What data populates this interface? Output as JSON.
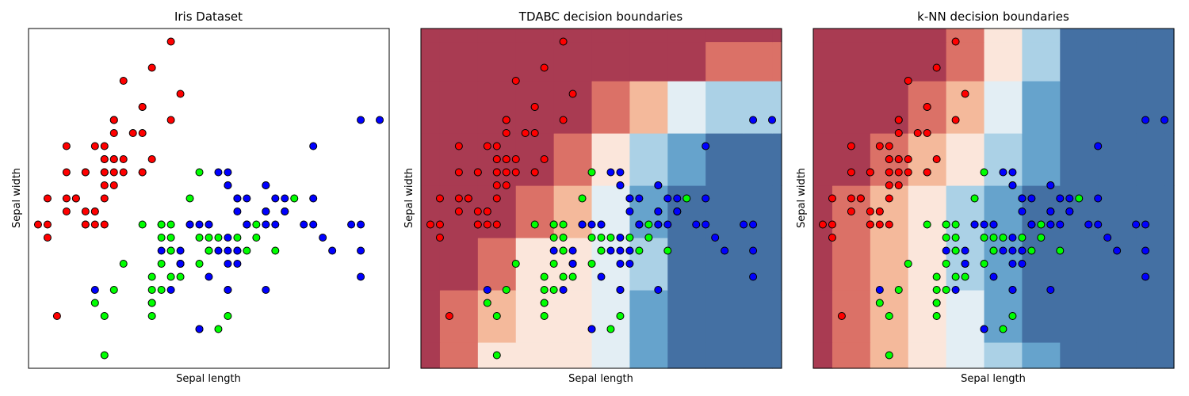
{
  "figure": {
    "background": "#ffffff"
  },
  "colors": {
    "class_0": "#ff0000",
    "class_1": "#00ff00",
    "class_2": "#0000ff",
    "marker_edge": "#000000",
    "region_palette": [
      "#a93b52",
      "#db7167",
      "#f4b99b",
      "#fbe6db",
      "#e3eef4",
      "#abd1e6",
      "#66a3cc",
      "#4470a3"
    ]
  },
  "chart_data": [
    {
      "type": "scatter",
      "title": "Iris Dataset",
      "xlabel": "Sepal length",
      "ylabel": "Sepal width",
      "xlim": [
        4.2,
        8.0
      ],
      "ylim": [
        1.9,
        4.5
      ],
      "ticks": false,
      "grid": false,
      "series": [
        {
          "class": 0,
          "color": "#ff0000",
          "points": [
            [
              5.1,
              3.5
            ],
            [
              4.9,
              3.0
            ],
            [
              4.7,
              3.2
            ],
            [
              4.6,
              3.1
            ],
            [
              5.0,
              3.6
            ],
            [
              5.4,
              3.9
            ],
            [
              4.6,
              3.4
            ],
            [
              5.0,
              3.4
            ],
            [
              4.4,
              2.9
            ],
            [
              4.9,
              3.1
            ],
            [
              5.4,
              3.7
            ],
            [
              4.8,
              3.4
            ],
            [
              4.8,
              3.0
            ],
            [
              4.3,
              3.0
            ],
            [
              5.8,
              4.0
            ],
            [
              5.7,
              4.4
            ],
            [
              5.4,
              3.9
            ],
            [
              5.1,
              3.5
            ],
            [
              5.7,
              3.8
            ],
            [
              5.1,
              3.8
            ],
            [
              5.4,
              3.4
            ],
            [
              5.1,
              3.7
            ],
            [
              4.6,
              3.6
            ],
            [
              5.1,
              3.3
            ],
            [
              4.8,
              3.4
            ],
            [
              5.0,
              3.0
            ],
            [
              5.0,
              3.4
            ],
            [
              5.2,
              3.5
            ],
            [
              5.2,
              3.4
            ],
            [
              4.7,
              3.2
            ],
            [
              4.8,
              3.1
            ],
            [
              5.4,
              3.4
            ],
            [
              5.2,
              4.1
            ],
            [
              5.5,
              4.2
            ],
            [
              4.9,
              3.1
            ],
            [
              5.0,
              3.2
            ],
            [
              5.5,
              3.5
            ],
            [
              4.9,
              3.6
            ],
            [
              4.4,
              3.0
            ],
            [
              5.1,
              3.4
            ],
            [
              5.0,
              3.5
            ],
            [
              4.5,
              2.3
            ],
            [
              4.4,
              3.2
            ],
            [
              5.0,
              3.5
            ],
            [
              5.1,
              3.8
            ],
            [
              4.8,
              3.0
            ],
            [
              5.1,
              3.8
            ],
            [
              4.6,
              3.2
            ],
            [
              5.3,
              3.7
            ],
            [
              5.0,
              3.3
            ]
          ]
        },
        {
          "class": 1,
          "color": "#00ff00",
          "points": [
            [
              7.0,
              3.2
            ],
            [
              6.4,
              3.2
            ],
            [
              6.9,
              3.1
            ],
            [
              5.5,
              2.3
            ],
            [
              6.5,
              2.8
            ],
            [
              5.7,
              2.8
            ],
            [
              6.3,
              3.3
            ],
            [
              4.9,
              2.4
            ],
            [
              6.6,
              2.9
            ],
            [
              5.2,
              2.7
            ],
            [
              5.0,
              2.0
            ],
            [
              5.9,
              3.0
            ],
            [
              6.0,
              2.2
            ],
            [
              6.1,
              2.9
            ],
            [
              5.6,
              2.9
            ],
            [
              6.7,
              3.1
            ],
            [
              5.6,
              3.0
            ],
            [
              5.8,
              2.7
            ],
            [
              6.2,
              2.2
            ],
            [
              5.6,
              2.5
            ],
            [
              5.9,
              3.2
            ],
            [
              6.1,
              2.8
            ],
            [
              6.3,
              2.5
            ],
            [
              6.1,
              2.8
            ],
            [
              6.4,
              2.9
            ],
            [
              6.6,
              3.0
            ],
            [
              6.8,
              2.8
            ],
            [
              6.7,
              3.0
            ],
            [
              6.0,
              2.9
            ],
            [
              5.7,
              2.6
            ],
            [
              5.5,
              2.4
            ],
            [
              5.5,
              2.4
            ],
            [
              5.8,
              2.7
            ],
            [
              6.0,
              2.7
            ],
            [
              5.4,
              3.0
            ],
            [
              6.0,
              3.4
            ],
            [
              6.7,
              3.1
            ],
            [
              6.3,
              2.3
            ],
            [
              5.6,
              3.0
            ],
            [
              5.5,
              2.5
            ],
            [
              5.5,
              2.6
            ],
            [
              6.1,
              3.0
            ],
            [
              5.8,
              2.6
            ],
            [
              5.0,
              2.3
            ],
            [
              5.6,
              2.7
            ],
            [
              5.7,
              3.0
            ],
            [
              5.7,
              2.9
            ],
            [
              6.2,
              2.9
            ],
            [
              5.1,
              2.5
            ],
            [
              5.7,
              2.8
            ]
          ]
        },
        {
          "class": 2,
          "color": "#0000ff",
          "points": [
            [
              6.3,
              3.3
            ],
            [
              5.8,
              2.7
            ],
            [
              7.1,
              3.0
            ],
            [
              6.3,
              2.9
            ],
            [
              6.5,
              3.0
            ],
            [
              7.6,
              3.0
            ],
            [
              4.9,
              2.5
            ],
            [
              7.3,
              2.9
            ],
            [
              6.7,
              2.5
            ],
            [
              7.2,
              3.6
            ],
            [
              6.5,
              3.2
            ],
            [
              6.4,
              2.7
            ],
            [
              6.8,
              3.0
            ],
            [
              5.7,
              2.5
            ],
            [
              5.8,
              2.8
            ],
            [
              6.4,
              3.2
            ],
            [
              6.5,
              3.0
            ],
            [
              7.7,
              3.8
            ],
            [
              7.7,
              2.6
            ],
            [
              6.0,
              2.2
            ],
            [
              6.9,
              3.2
            ],
            [
              5.6,
              2.8
            ],
            [
              7.7,
              2.8
            ],
            [
              6.3,
              2.7
            ],
            [
              6.7,
              3.3
            ],
            [
              7.2,
              3.2
            ],
            [
              6.2,
              2.8
            ],
            [
              6.1,
              3.0
            ],
            [
              6.4,
              2.8
            ],
            [
              7.2,
              3.0
            ],
            [
              7.4,
              2.8
            ],
            [
              7.9,
              3.8
            ],
            [
              6.4,
              2.8
            ],
            [
              6.3,
              2.8
            ],
            [
              6.1,
              2.6
            ],
            [
              7.7,
              3.0
            ],
            [
              6.3,
              3.4
            ],
            [
              6.4,
              3.1
            ],
            [
              6.0,
              3.0
            ],
            [
              6.9,
              3.1
            ],
            [
              6.7,
              3.1
            ],
            [
              6.9,
              3.1
            ],
            [
              5.8,
              2.7
            ],
            [
              6.8,
              3.2
            ],
            [
              6.7,
              3.3
            ],
            [
              6.7,
              3.0
            ],
            [
              6.3,
              2.5
            ],
            [
              6.5,
              3.0
            ],
            [
              6.2,
              3.4
            ],
            [
              5.9,
              3.0
            ]
          ]
        }
      ]
    },
    {
      "type": "heatmap",
      "title": "TDABC decision boundaries",
      "xlabel": "Sepal length",
      "ylabel": "Sepal width",
      "xlim": [
        4.2,
        8.0
      ],
      "ylim": [
        1.9,
        4.5
      ],
      "ticks": false,
      "overlay": "scatter of the Iris points (same as panel 1)",
      "levels": 8,
      "grid_x": [
        4.2,
        4.6,
        5.0,
        5.4,
        5.8,
        6.2,
        6.6,
        7.0,
        7.4,
        7.8,
        8.0
      ],
      "grid_y": [
        1.9,
        2.3,
        2.7,
        3.1,
        3.5,
        3.9,
        4.3,
        4.5
      ],
      "levels_grid": [
        [
          0,
          1,
          3,
          3,
          3,
          4,
          6,
          7,
          7,
          7,
          7
        ],
        [
          0,
          1,
          2,
          3,
          3,
          4,
          6,
          7,
          7,
          7,
          7
        ],
        [
          0,
          0,
          1,
          3,
          3,
          4,
          5,
          7,
          7,
          7,
          7
        ],
        [
          0,
          0,
          0,
          1,
          2,
          4,
          6,
          7,
          7,
          7,
          7
        ],
        [
          0,
          0,
          0,
          0,
          1,
          3,
          5,
          6,
          7,
          7,
          7
        ],
        [
          0,
          0,
          0,
          0,
          0,
          1,
          2,
          4,
          5,
          5,
          5
        ],
        [
          0,
          0,
          0,
          0,
          0,
          0,
          0,
          0,
          1,
          1,
          1
        ],
        [
          0,
          0,
          0,
          0,
          0,
          0,
          0,
          0,
          0,
          0,
          0
        ]
      ]
    },
    {
      "type": "heatmap",
      "title": "k-NN decision boundaries",
      "xlabel": "Sepal length",
      "ylabel": "Sepal width",
      "xlim": [
        4.2,
        8.0
      ],
      "ylim": [
        1.9,
        4.5
      ],
      "ticks": false,
      "overlay": "scatter of the Iris points (same as panel 1)",
      "levels": 8,
      "grid_x": [
        4.2,
        4.6,
        5.0,
        5.4,
        5.8,
        6.2,
        6.6,
        7.0,
        7.4,
        7.8,
        8.0
      ],
      "grid_y": [
        1.9,
        2.3,
        2.7,
        3.1,
        3.5,
        3.9,
        4.3,
        4.5
      ],
      "levels_grid": [
        [
          0,
          1,
          2,
          3,
          4,
          5,
          6,
          7,
          7,
          7,
          7
        ],
        [
          0,
          1,
          2,
          3,
          4,
          6,
          7,
          7,
          7,
          7,
          7
        ],
        [
          0,
          1,
          2,
          3,
          5,
          6,
          7,
          7,
          7,
          7,
          7
        ],
        [
          0,
          1,
          2,
          3,
          5,
          6,
          7,
          7,
          7,
          7,
          7
        ],
        [
          0,
          0,
          1,
          2,
          3,
          5,
          6,
          7,
          7,
          7,
          7
        ],
        [
          0,
          0,
          0,
          1,
          2,
          4,
          6,
          7,
          7,
          7,
          7
        ],
        [
          0,
          0,
          0,
          0,
          1,
          3,
          5,
          7,
          7,
          7,
          7
        ],
        [
          0,
          0,
          0,
          0,
          1,
          3,
          5,
          7,
          7,
          7,
          7
        ]
      ]
    }
  ]
}
